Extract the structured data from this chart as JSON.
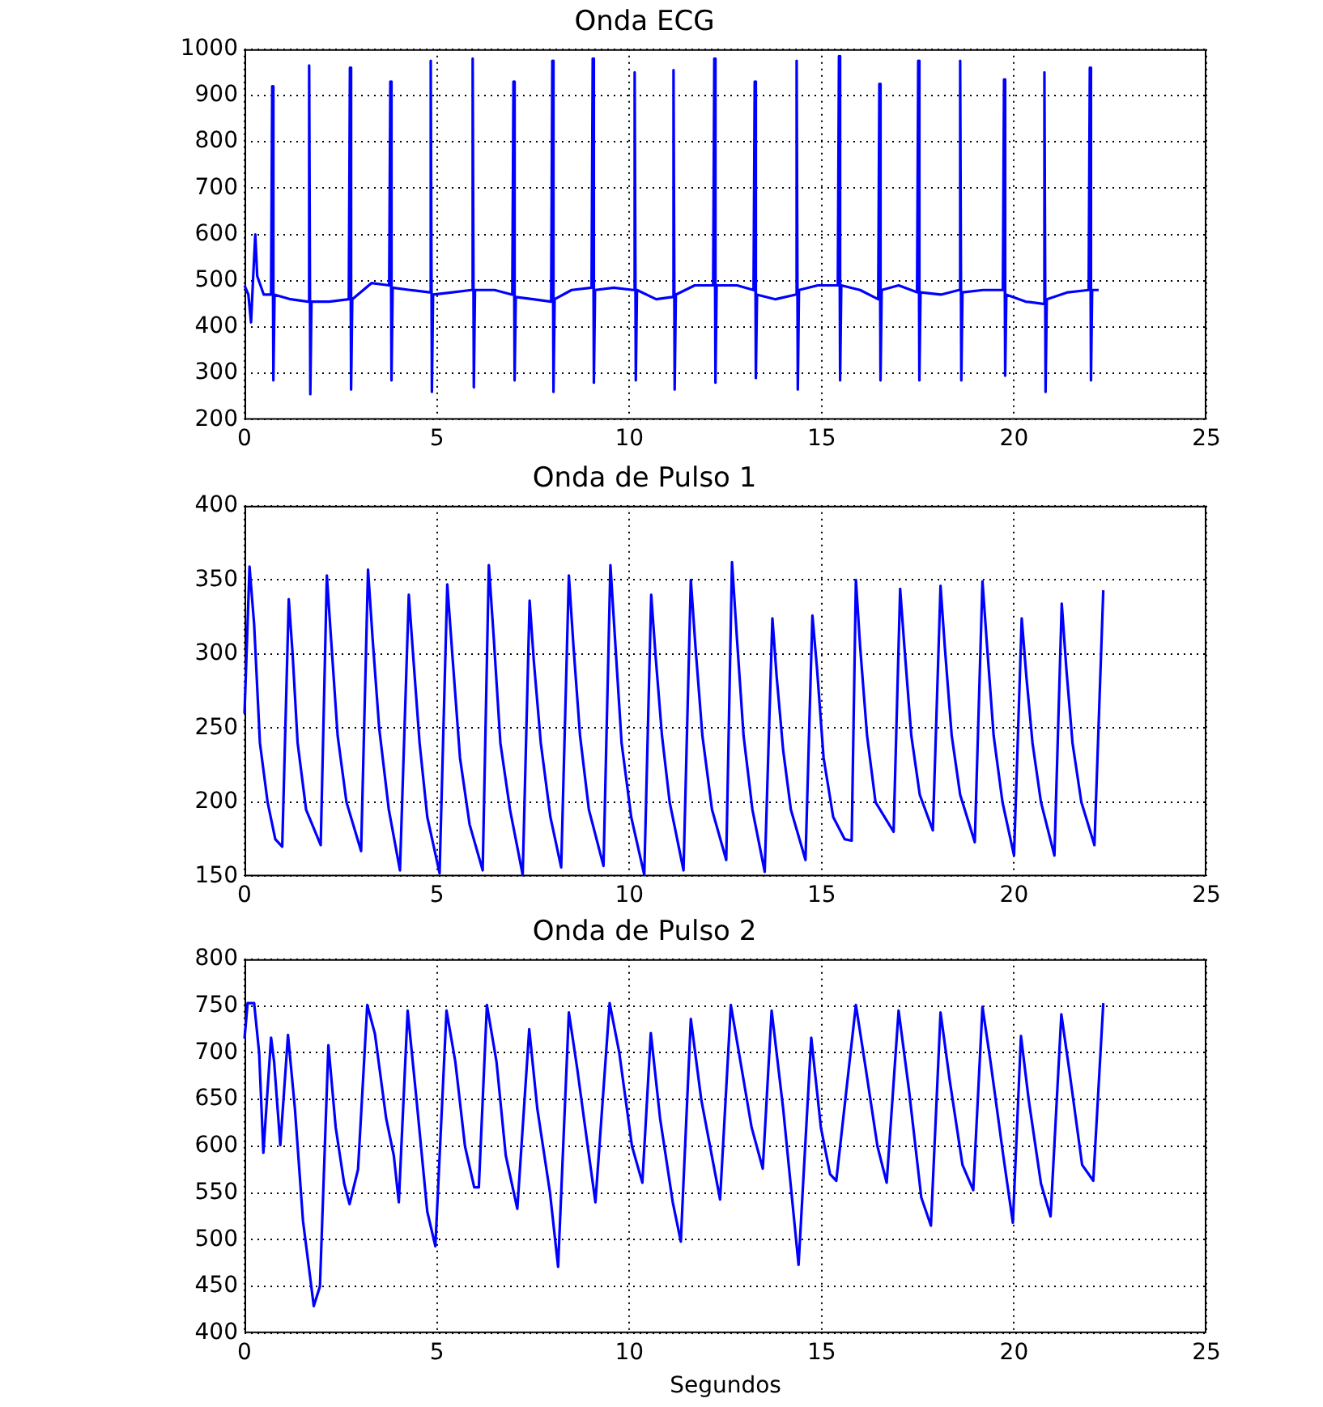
{
  "chart_data": [
    {
      "type": "line",
      "title": "Onda ECG",
      "color": "#0000ff",
      "marker": "none",
      "line_style": "solid",
      "grid": true,
      "xlim": [
        0,
        25
      ],
      "xticks": [
        0,
        5,
        10,
        15,
        20,
        25
      ],
      "ylim": [
        200,
        1000
      ],
      "yticks": [
        200,
        300,
        400,
        500,
        600,
        700,
        800,
        900,
        1000
      ],
      "x": [
        0,
        0.1,
        0.17,
        0.22,
        0.28,
        0.33,
        0.5,
        0.69,
        0.72,
        0.75,
        0.78,
        1.2,
        1.65,
        1.68,
        1.71,
        1.74,
        2.2,
        2.71,
        2.74,
        2.77,
        2.8,
        3.3,
        3.76,
        3.79,
        3.82,
        3.85,
        4.3,
        4.81,
        4.84,
        4.87,
        4.9,
        5.4,
        5.9,
        5.93,
        5.96,
        5.99,
        6.5,
        6.96,
        6.99,
        7.02,
        7.05,
        7.5,
        7.97,
        8.0,
        8.03,
        8.06,
        8.5,
        9.02,
        9.05,
        9.08,
        9.11,
        9.6,
        10.11,
        10.14,
        10.17,
        10.2,
        10.7,
        11.12,
        11.15,
        11.18,
        11.21,
        11.7,
        12.18,
        12.21,
        12.24,
        12.27,
        12.8,
        13.23,
        13.26,
        13.29,
        13.32,
        13.8,
        14.32,
        14.35,
        14.38,
        14.41,
        14.9,
        15.42,
        15.45,
        15.48,
        15.51,
        16.0,
        16.47,
        16.5,
        16.53,
        16.56,
        17.0,
        17.48,
        17.51,
        17.54,
        17.57,
        18.1,
        18.57,
        18.6,
        18.63,
        18.66,
        19.2,
        19.71,
        19.74,
        19.77,
        19.8,
        20.3,
        20.76,
        20.79,
        20.82,
        20.85,
        21.4,
        21.94,
        21.97,
        22.0,
        22.03,
        22.2
      ],
      "values": [
        490,
        470,
        410,
        500,
        600,
        510,
        470,
        470,
        920,
        285,
        470,
        460,
        455,
        965,
        255,
        455,
        455,
        460,
        960,
        265,
        460,
        495,
        490,
        930,
        285,
        485,
        480,
        475,
        975,
        260,
        470,
        475,
        480,
        980,
        270,
        480,
        480,
        470,
        930,
        285,
        465,
        460,
        455,
        975,
        260,
        460,
        480,
        485,
        980,
        280,
        480,
        485,
        480,
        950,
        285,
        480,
        460,
        465,
        955,
        265,
        470,
        490,
        490,
        980,
        280,
        490,
        490,
        480,
        930,
        290,
        470,
        460,
        470,
        975,
        265,
        480,
        490,
        490,
        985,
        285,
        490,
        480,
        460,
        925,
        285,
        480,
        490,
        475,
        975,
        285,
        475,
        470,
        480,
        975,
        285,
        475,
        480,
        480,
        935,
        295,
        470,
        455,
        450,
        950,
        260,
        460,
        475,
        480,
        960,
        285,
        480,
        480
      ]
    },
    {
      "type": "line",
      "title": "Onda de Pulso 1",
      "color": "#0000ff",
      "marker": "none",
      "line_style": "solid",
      "grid": true,
      "xlim": [
        0,
        25
      ],
      "xticks": [
        0,
        5,
        10,
        15,
        20,
        25
      ],
      "ylim": [
        150,
        400
      ],
      "yticks": [
        150,
        200,
        250,
        300,
        350,
        400
      ],
      "x": [
        0,
        0.13,
        0.25,
        0.4,
        0.6,
        0.8,
        0.98,
        1.15,
        1.25,
        1.38,
        1.6,
        1.98,
        2.14,
        2.25,
        2.42,
        2.65,
        3.03,
        3.21,
        3.33,
        3.5,
        3.75,
        4.04,
        4.27,
        4.38,
        4.55,
        4.75,
        5.07,
        5.27,
        5.4,
        5.6,
        5.85,
        6.19,
        6.35,
        6.48,
        6.65,
        6.9,
        7.23,
        7.41,
        7.52,
        7.7,
        7.95,
        8.23,
        8.43,
        8.55,
        8.72,
        8.95,
        9.33,
        9.51,
        9.63,
        9.8,
        10.05,
        10.39,
        10.57,
        10.68,
        10.85,
        11.05,
        11.41,
        11.6,
        11.72,
        11.9,
        12.15,
        12.52,
        12.67,
        12.8,
        12.97,
        13.2,
        13.52,
        13.72,
        13.83,
        14.0,
        14.2,
        14.58,
        14.76,
        14.88,
        15.05,
        15.3,
        15.6,
        15.78,
        15.89,
        16.0,
        16.18,
        16.4,
        16.87,
        17.04,
        17.15,
        17.33,
        17.55,
        17.89,
        18.09,
        18.2,
        18.38,
        18.6,
        18.98,
        19.18,
        19.3,
        19.47,
        19.7,
        20.0,
        20.2,
        20.32,
        20.48,
        20.7,
        21.05,
        21.24,
        21.36,
        21.52,
        21.75,
        22.09,
        22.32
      ],
      "values": [
        260,
        359,
        320,
        240,
        200,
        175,
        170,
        337,
        300,
        240,
        195,
        171,
        353,
        310,
        245,
        200,
        167,
        357,
        310,
        250,
        195,
        154,
        340,
        300,
        240,
        190,
        152,
        347,
        300,
        230,
        185,
        154,
        360,
        310,
        240,
        195,
        151,
        336,
        295,
        240,
        190,
        156,
        353,
        305,
        245,
        195,
        157,
        360,
        310,
        240,
        190,
        151,
        340,
        300,
        245,
        200,
        154,
        350,
        305,
        245,
        195,
        161,
        362,
        310,
        245,
        195,
        153,
        324,
        285,
        235,
        195,
        161,
        326,
        290,
        230,
        190,
        175,
        174,
        350,
        305,
        245,
        200,
        180,
        344,
        305,
        245,
        205,
        181,
        346,
        305,
        245,
        205,
        173,
        349,
        305,
        245,
        200,
        164,
        324,
        285,
        240,
        200,
        164,
        334,
        290,
        240,
        200,
        171,
        343
      ]
    },
    {
      "type": "line",
      "title": "Onda de Pulso 2",
      "xlabel": "Segundos",
      "color": "#0000ff",
      "marker": "none",
      "line_style": "solid",
      "grid": true,
      "xlim": [
        0,
        25
      ],
      "xticks": [
        0,
        5,
        10,
        15,
        20,
        25
      ],
      "ylim": [
        400,
        800
      ],
      "yticks": [
        400,
        450,
        500,
        550,
        600,
        650,
        700,
        750,
        800
      ],
      "x": [
        0,
        0.08,
        0.25,
        0.38,
        0.49,
        0.69,
        0.77,
        0.93,
        1.13,
        1.31,
        1.52,
        1.8,
        1.96,
        2.18,
        2.37,
        2.59,
        2.73,
        2.95,
        3.19,
        3.39,
        3.68,
        3.88,
        4.01,
        4.24,
        4.47,
        4.75,
        4.96,
        5.25,
        5.48,
        5.73,
        5.97,
        6.09,
        6.3,
        6.55,
        6.79,
        7.09,
        7.4,
        7.61,
        7.94,
        8.15,
        8.43,
        8.64,
        8.92,
        9.12,
        9.49,
        9.74,
        10.07,
        10.34,
        10.56,
        10.8,
        11.13,
        11.34,
        11.6,
        11.87,
        12.19,
        12.36,
        12.64,
        12.85,
        13.18,
        13.47,
        13.7,
        14.0,
        14.24,
        14.4,
        14.73,
        14.98,
        15.22,
        15.38,
        15.89,
        16.12,
        16.45,
        16.69,
        17.0,
        17.27,
        17.59,
        17.84,
        18.09,
        18.33,
        18.66,
        18.94,
        19.18,
        19.39,
        19.72,
        19.97,
        20.18,
        20.38,
        20.7,
        20.95,
        21.23,
        21.44,
        21.77,
        22.06,
        22.32
      ],
      "values": [
        715,
        753,
        753,
        700,
        593,
        716,
        690,
        601,
        719,
        640,
        520,
        429,
        450,
        708,
        620,
        560,
        538,
        575,
        751,
        720,
        630,
        590,
        540,
        745,
        650,
        530,
        493,
        745,
        690,
        600,
        556,
        556,
        751,
        690,
        590,
        533,
        725,
        640,
        550,
        471,
        743,
        685,
        600,
        540,
        753,
        700,
        600,
        561,
        721,
        630,
        540,
        498,
        736,
        650,
        580,
        543,
        751,
        700,
        620,
        576,
        745,
        640,
        540,
        473,
        716,
        620,
        570,
        563,
        751,
        690,
        600,
        561,
        745,
        660,
        545,
        515,
        743,
        670,
        580,
        553,
        749,
        690,
        590,
        518,
        718,
        650,
        560,
        525,
        741,
        680,
        580,
        563,
        753
      ]
    }
  ]
}
